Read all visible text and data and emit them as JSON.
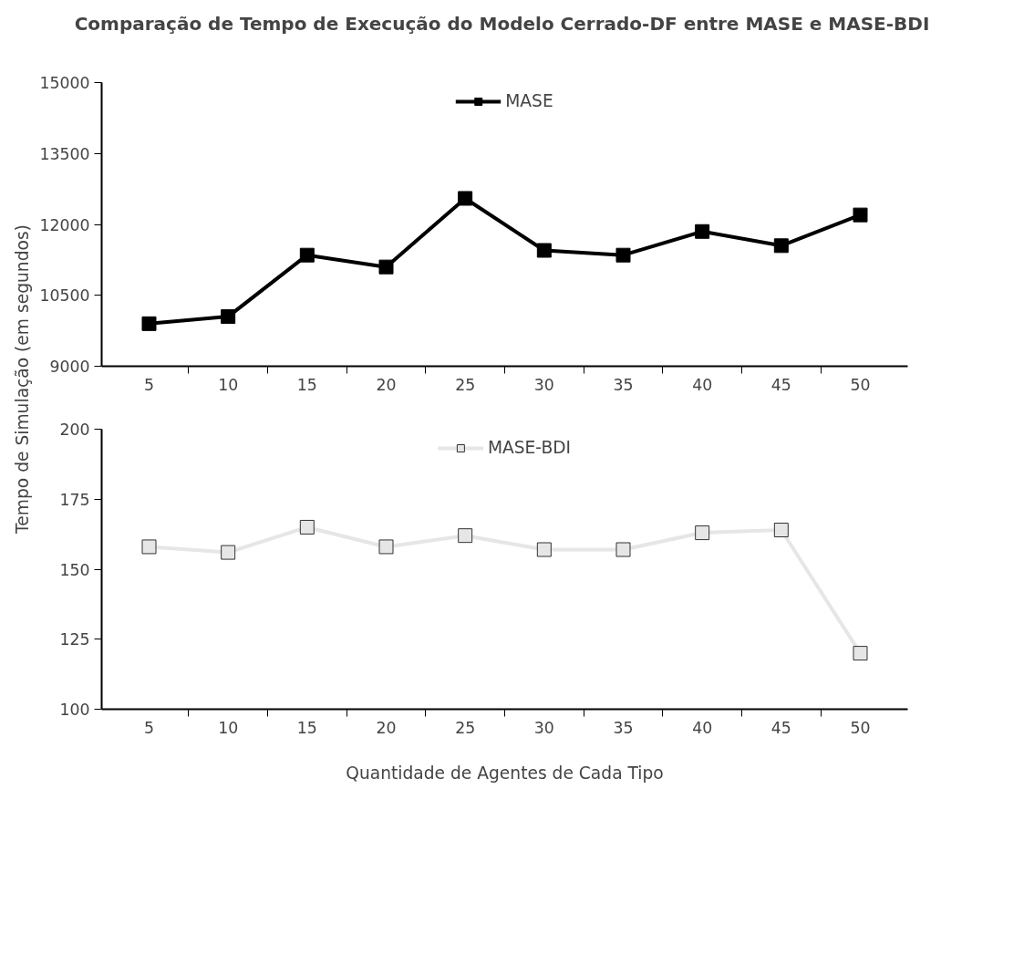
{
  "chart_data": [
    {
      "type": "line",
      "title": "Comparação de Tempo de Execução do Modelo Cerrado-DF entre MASE e MASE-BDI",
      "ylabel": "Tempo de Simulação (em segundos)",
      "categories": [
        "5",
        "10",
        "15",
        "20",
        "25",
        "30",
        "35",
        "40",
        "45",
        "50"
      ],
      "series": [
        {
          "name": "MASE",
          "color": "#000000",
          "values": [
            9900,
            10050,
            11350,
            11100,
            12550,
            11450,
            11350,
            11850,
            11550,
            12200
          ]
        }
      ],
      "ylim": [
        9000,
        15000
      ],
      "yticks": [
        9000,
        10500,
        12000,
        13500,
        15000
      ],
      "marker": "square",
      "legend": "top",
      "grid": false
    },
    {
      "type": "line",
      "xlabel": "Quantidade de Agentes de Cada Tipo",
      "categories": [
        "5",
        "10",
        "15",
        "20",
        "25",
        "30",
        "35",
        "40",
        "45",
        "50"
      ],
      "series": [
        {
          "name": "MASE-BDI",
          "color": "#e6e6e6",
          "values": [
            158,
            156,
            165,
            158,
            162,
            157,
            157,
            163,
            164,
            120
          ]
        }
      ],
      "ylim": [
        100,
        200
      ],
      "yticks": [
        100,
        125,
        150,
        175,
        200
      ],
      "marker": "square",
      "legend": "top",
      "grid": false
    }
  ]
}
